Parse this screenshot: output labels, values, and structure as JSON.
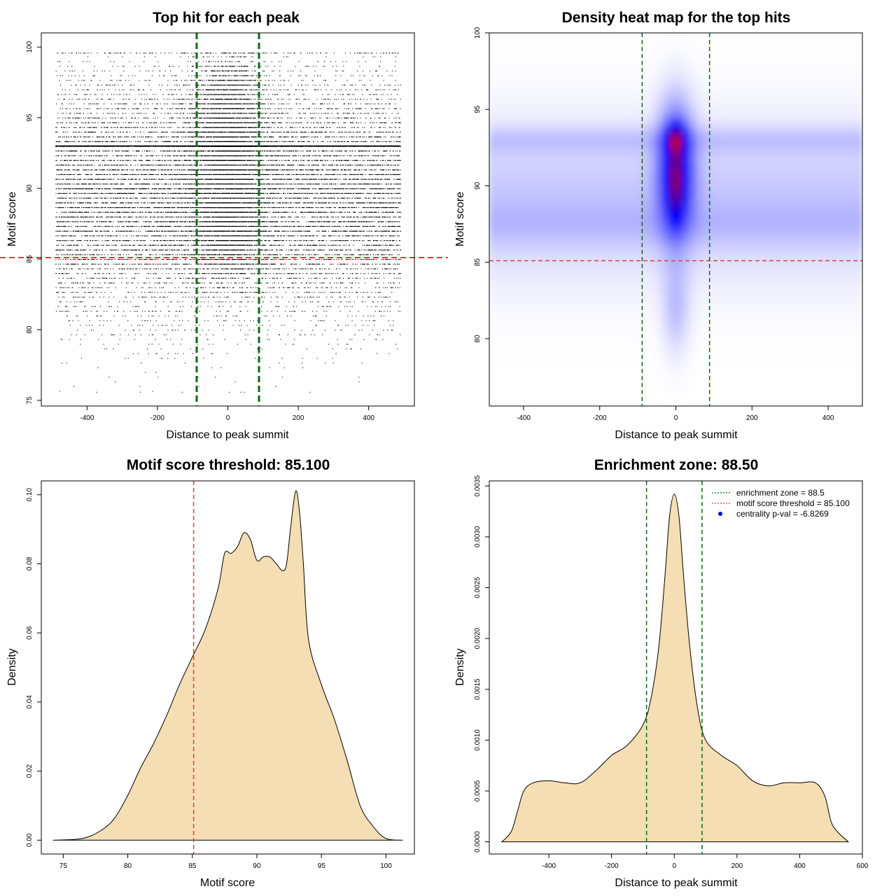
{
  "colors": {
    "threshold_red": "#e03c3c",
    "zone_green": "#0b6b14",
    "density_fill": "#f5deb3",
    "heat_low": "#ffffff",
    "heat_mid": "#0000ff",
    "heat_high": "#ff0000",
    "point_black": "#000000",
    "centrality_blue": "#0000ff"
  },
  "chart_data": [
    {
      "type": "scatter",
      "title": "Top hit for each peak",
      "xlabel": "Distance to peak summit",
      "ylabel": "Motif score",
      "xlim": [
        -530,
        530
      ],
      "ylim": [
        74.6,
        101
      ],
      "xticks": [
        "-400",
        "-200",
        "0",
        "200",
        "400"
      ],
      "xtick_values": [
        -400,
        -200,
        0,
        200,
        400
      ],
      "yticks": [
        "75",
        "80",
        "85",
        "90",
        "95",
        "100"
      ],
      "ytick_values": [
        75,
        80,
        85,
        90,
        95,
        100
      ],
      "threshold": 85.1,
      "enrichment_zone": [
        -88.5,
        88.5
      ],
      "point_count_approx": 24000,
      "x_range": [
        -490,
        490
      ],
      "score_mean": 89.5,
      "score_sd": 4.2,
      "central_cluster": {
        "x_center": 0,
        "x_sd": 55,
        "y_range": [
          85,
          98
        ]
      },
      "dense_row_score": 93
    },
    {
      "type": "heatmap",
      "title": "Density heat map for the top hits",
      "xlabel": "Distance to peak summit",
      "ylabel": "Motif score",
      "xlim": [
        -490,
        490
      ],
      "ylim": [
        75.6,
        100
      ],
      "xticks": [
        "-400",
        "-200",
        "0",
        "200",
        "400"
      ],
      "xtick_values": [
        -400,
        -200,
        0,
        200,
        400
      ],
      "yticks": [
        "80",
        "85",
        "90",
        "95",
        "100"
      ],
      "ytick_values": [
        80,
        85,
        90,
        95,
        100
      ],
      "threshold": 85.1,
      "enrichment_zone": [
        -88.5,
        88.5
      ],
      "hotspot": {
        "x": 0,
        "y": 93
      },
      "secondary_hotspot": {
        "x": 0,
        "y": 90
      }
    },
    {
      "type": "area",
      "title": "Motif score threshold: 85.100",
      "xlabel": "Motif score",
      "ylabel": "Density",
      "xlim": [
        73.3,
        102.2
      ],
      "ylim": [
        -0.004,
        0.104
      ],
      "xticks": [
        "75",
        "80",
        "85",
        "90",
        "95",
        "100"
      ],
      "xtick_values": [
        75,
        80,
        85,
        90,
        95,
        100
      ],
      "yticks": [
        "0.00",
        "0.02",
        "0.04",
        "0.06",
        "0.08",
        "0.10"
      ],
      "ytick_values": [
        0,
        0.02,
        0.04,
        0.06,
        0.08,
        0.1
      ],
      "threshold": 85.1,
      "x": [
        74.2,
        76.5,
        78,
        79,
        80,
        81,
        82,
        83,
        84,
        85,
        86,
        87,
        87.5,
        88,
        88.5,
        89,
        89.5,
        90,
        90.5,
        91,
        91.5,
        92,
        92.3,
        92.6,
        93,
        93.3,
        93.6,
        94,
        95,
        96,
        97,
        98,
        99,
        100,
        101.3
      ],
      "y": [
        0,
        0.0005,
        0.003,
        0.0065,
        0.013,
        0.021,
        0.028,
        0.036,
        0.045,
        0.053,
        0.061,
        0.073,
        0.083,
        0.083,
        0.085,
        0.089,
        0.087,
        0.081,
        0.082,
        0.082,
        0.08,
        0.078,
        0.08,
        0.09,
        0.101,
        0.095,
        0.08,
        0.058,
        0.045,
        0.035,
        0.023,
        0.01,
        0.004,
        0.0005,
        0
      ]
    },
    {
      "type": "area",
      "title": "Enrichment zone: 88.50",
      "xlabel": "Distance to peak summit",
      "ylabel": "Density",
      "xlim": [
        -590,
        600
      ],
      "ylim": [
        -0.00012,
        0.00355
      ],
      "xticks": [
        "-400",
        "-200",
        "0",
        "200",
        "400",
        "600"
      ],
      "xtick_values": [
        -400,
        -200,
        0,
        200,
        400,
        600
      ],
      "yticks": [
        "0.0000",
        "0.0005",
        "0.0010",
        "0.0015",
        "0.0020",
        "0.0025",
        "0.0030",
        "0.0035"
      ],
      "ytick_values": [
        0,
        0.0005,
        0.001,
        0.0015,
        0.002,
        0.0025,
        0.003,
        0.0035
      ],
      "enrichment_zone": [
        -88.5,
        88.5
      ],
      "x": [
        -550,
        -520,
        -500,
        -480,
        -450,
        -400,
        -350,
        -300,
        -250,
        -200,
        -150,
        -100,
        -75,
        -50,
        -30,
        -15,
        0,
        15,
        30,
        50,
        75,
        100,
        150,
        200,
        250,
        300,
        350,
        400,
        450,
        480,
        500,
        520,
        555
      ],
      "y": [
        0,
        0.0001,
        0.0003,
        0.0005,
        0.00058,
        0.0006,
        0.00058,
        0.00058,
        0.0007,
        0.00085,
        0.00095,
        0.00115,
        0.0014,
        0.0019,
        0.0026,
        0.0032,
        0.00342,
        0.0032,
        0.0026,
        0.0019,
        0.0013,
        0.001,
        0.00085,
        0.00075,
        0.0006,
        0.00055,
        0.00058,
        0.00058,
        0.00058,
        0.00045,
        0.0002,
        0.0001,
        0
      ],
      "legend": [
        {
          "label": "enrichment zone = 88.5",
          "style": "dotted-line",
          "color": "#0b6b14"
        },
        {
          "label": "motif score threshold = 85.100",
          "style": "dotted-line",
          "color": "#e03c3c"
        },
        {
          "label": "centrality p-val = -6.8269",
          "style": "point",
          "color": "#0000ff"
        }
      ],
      "legend_position": "top-right"
    }
  ]
}
